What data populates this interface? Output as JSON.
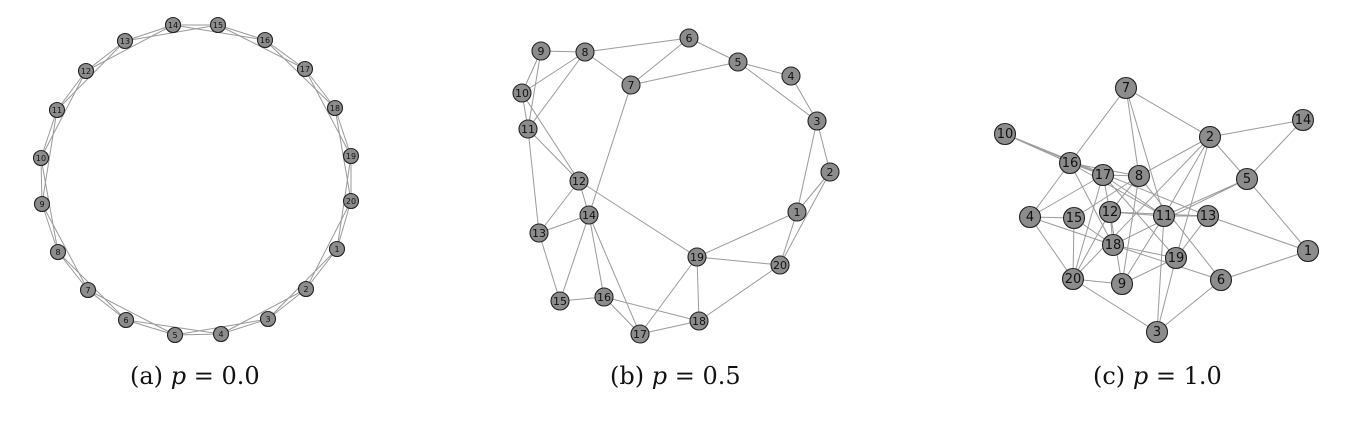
{
  "panels": [
    {
      "id": "a",
      "caption": {
        "tag": "(a)",
        "var": "p",
        "eq": "=",
        "value": "0.0"
      },
      "node_labels": [
        "1",
        "2",
        "3",
        "4",
        "5",
        "6",
        "7",
        "8",
        "9",
        "10",
        "11",
        "12",
        "13",
        "14",
        "15",
        "16",
        "17",
        "18",
        "19",
        "20"
      ],
      "edges": [
        [
          1,
          2
        ],
        [
          2,
          3
        ],
        [
          3,
          4
        ],
        [
          4,
          5
        ],
        [
          5,
          6
        ],
        [
          6,
          7
        ],
        [
          7,
          8
        ],
        [
          8,
          9
        ],
        [
          9,
          10
        ],
        [
          10,
          11
        ],
        [
          11,
          12
        ],
        [
          12,
          13
        ],
        [
          13,
          14
        ],
        [
          14,
          15
        ],
        [
          15,
          16
        ],
        [
          16,
          17
        ],
        [
          17,
          18
        ],
        [
          18,
          19
        ],
        [
          19,
          20
        ],
        [
          20,
          1
        ],
        [
          1,
          3
        ],
        [
          2,
          4
        ],
        [
          3,
          5
        ],
        [
          4,
          6
        ],
        [
          5,
          7
        ],
        [
          6,
          8
        ],
        [
          7,
          9
        ],
        [
          8,
          10
        ],
        [
          9,
          11
        ],
        [
          10,
          12
        ],
        [
          11,
          13
        ],
        [
          12,
          14
        ],
        [
          13,
          15
        ],
        [
          14,
          16
        ],
        [
          15,
          17
        ],
        [
          16,
          18
        ],
        [
          17,
          19
        ],
        [
          18,
          20
        ],
        [
          19,
          1
        ],
        [
          20,
          2
        ]
      ]
    },
    {
      "id": "b",
      "caption": {
        "tag": "(b)",
        "var": "p",
        "eq": "=",
        "value": "0.5"
      },
      "node_labels": [
        "1",
        "2",
        "3",
        "4",
        "5",
        "6",
        "7",
        "8",
        "9",
        "10",
        "11",
        "12",
        "13",
        "14",
        "15",
        "16",
        "17",
        "18",
        "19",
        "20"
      ],
      "edges": [
        [
          9,
          8
        ],
        [
          9,
          10
        ],
        [
          9,
          11
        ],
        [
          8,
          10
        ],
        [
          8,
          11
        ],
        [
          8,
          7
        ],
        [
          8,
          6
        ],
        [
          6,
          7
        ],
        [
          6,
          5
        ],
        [
          7,
          5
        ],
        [
          5,
          4
        ],
        [
          5,
          3
        ],
        [
          4,
          3
        ],
        [
          3,
          2
        ],
        [
          3,
          1
        ],
        [
          2,
          1
        ],
        [
          2,
          20
        ],
        [
          1,
          19
        ],
        [
          1,
          20
        ],
        [
          19,
          20
        ],
        [
          19,
          17
        ],
        [
          19,
          18
        ],
        [
          19,
          12
        ],
        [
          20,
          18
        ],
        [
          18,
          17
        ],
        [
          18,
          16
        ],
        [
          17,
          16
        ],
        [
          17,
          14
        ],
        [
          16,
          15
        ],
        [
          16,
          14
        ],
        [
          15,
          14
        ],
        [
          15,
          13
        ],
        [
          14,
          13
        ],
        [
          14,
          7
        ],
        [
          14,
          12
        ],
        [
          13,
          12
        ],
        [
          13,
          11
        ],
        [
          11,
          10
        ],
        [
          11,
          12
        ],
        [
          10,
          12
        ]
      ]
    },
    {
      "id": "c",
      "caption": {
        "tag": "(c)",
        "var": "p",
        "eq": "=",
        "value": "1.0"
      },
      "node_labels": [
        "1",
        "2",
        "3",
        "4",
        "5",
        "6",
        "7",
        "8",
        "9",
        "10",
        "11",
        "12",
        "13",
        "14",
        "15",
        "16",
        "17",
        "18",
        "19",
        "20"
      ],
      "edges": [
        [
          7,
          16
        ],
        [
          7,
          8
        ],
        [
          7,
          2
        ],
        [
          7,
          11
        ],
        [
          10,
          16
        ],
        [
          10,
          17
        ],
        [
          10,
          13
        ],
        [
          14,
          2
        ],
        [
          14,
          5
        ],
        [
          2,
          8
        ],
        [
          2,
          5
        ],
        [
          2,
          11
        ],
        [
          2,
          19
        ],
        [
          2,
          20
        ],
        [
          5,
          11
        ],
        [
          5,
          1
        ],
        [
          5,
          18
        ],
        [
          8,
          16
        ],
        [
          8,
          17
        ],
        [
          8,
          12
        ],
        [
          8,
          6
        ],
        [
          8,
          9
        ],
        [
          8,
          15
        ],
        [
          1,
          13
        ],
        [
          1,
          6
        ],
        [
          17,
          16
        ],
        [
          17,
          12
        ],
        [
          17,
          19
        ],
        [
          17,
          11
        ],
        [
          17,
          4
        ],
        [
          16,
          4
        ],
        [
          16,
          18
        ],
        [
          16,
          11
        ],
        [
          12,
          11
        ],
        [
          12,
          18
        ],
        [
          12,
          9
        ],
        [
          12,
          20
        ],
        [
          12,
          13
        ],
        [
          4,
          18
        ],
        [
          4,
          20
        ],
        [
          4,
          15
        ],
        [
          11,
          13
        ],
        [
          11,
          9
        ],
        [
          11,
          3
        ],
        [
          15,
          18
        ],
        [
          15,
          20
        ],
        [
          18,
          19
        ],
        [
          18,
          6
        ],
        [
          13,
          19
        ],
        [
          19,
          9
        ],
        [
          19,
          3
        ],
        [
          9,
          20
        ],
        [
          20,
          3
        ],
        [
          6,
          3
        ],
        [
          20,
          17
        ]
      ]
    }
  ]
}
